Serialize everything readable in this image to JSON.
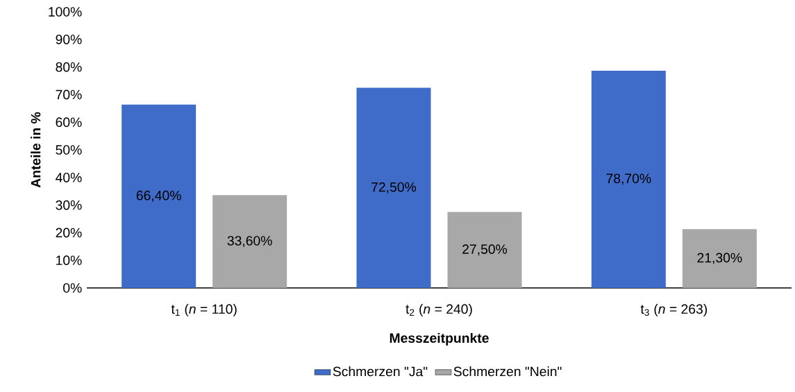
{
  "chart_data": {
    "type": "bar",
    "categories": [
      "t$_{1}$ (*n* = 110)",
      "t$_{2}$ (*n* = 240)",
      "t$_{3}$ (*n* = 263)"
    ],
    "series": [
      {
        "name": "Schmerzen \"Ja\"",
        "color": "#3f6cc9",
        "values": [
          66.4,
          72.5,
          78.7
        ],
        "value_labels": [
          "66,40%",
          "72,50%",
          "78,70%"
        ]
      },
      {
        "name": "Schmerzen \"Nein\"",
        "color": "#a8a8a8",
        "values": [
          33.6,
          27.5,
          21.3
        ],
        "value_labels": [
          "33,60%",
          "27,50%",
          "21,30%"
        ]
      }
    ],
    "xlabel": "Messzeitpunkte",
    "ylabel": "Anteile in %",
    "ylim": [
      0,
      100
    ],
    "yticks": [
      {
        "value": 0,
        "label": "0%"
      },
      {
        "value": 10,
        "label": "10%"
      },
      {
        "value": 20,
        "label": "20%"
      },
      {
        "value": 30,
        "label": "30%"
      },
      {
        "value": 40,
        "label": "40%"
      },
      {
        "value": 50,
        "label": "50%"
      },
      {
        "value": 60,
        "label": "60%"
      },
      {
        "value": 70,
        "label": "70%"
      },
      {
        "value": 80,
        "label": "80%"
      },
      {
        "value": 90,
        "label": "90%"
      },
      {
        "value": 100,
        "label": "100%"
      }
    ],
    "grid": false,
    "legend": "bottom"
  }
}
